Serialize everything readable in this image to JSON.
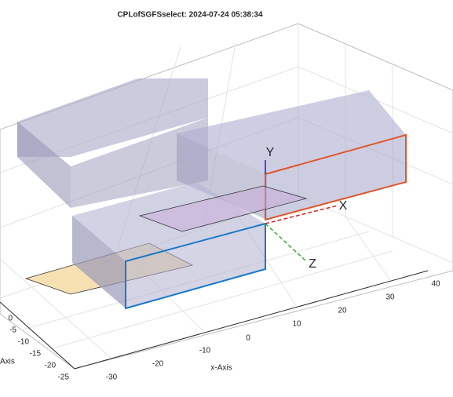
{
  "title": "CPLofSGFSselect: 2024-07-24 05:38:34",
  "x_axis": {
    "label": "x-Axis",
    "ticks": [
      "-30",
      "-20",
      "-10",
      "0",
      "10",
      "20",
      "30",
      "40"
    ]
  },
  "z_axis": {
    "label": "Axis",
    "ticks": [
      "0",
      "-5",
      "-10",
      "-15",
      "-20",
      "-25"
    ]
  },
  "axis_markers": {
    "x": "X",
    "y": "Y",
    "z": "Z"
  }
}
